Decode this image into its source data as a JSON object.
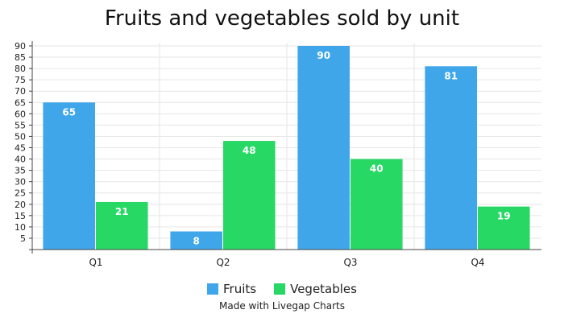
{
  "colors": {
    "fruits": "#3fa6ea",
    "vegetables": "#27d865",
    "grid": "#e6e6e6",
    "axis": "#444444"
  },
  "footer": {
    "credit": "Made with Livegap Charts"
  },
  "chart_data": {
    "type": "bar",
    "title": "Fruits and vegetables sold by unit",
    "categories": [
      "Q1",
      "Q2",
      "Q3",
      "Q4"
    ],
    "series": [
      {
        "name": "Fruits",
        "values": [
          65,
          8,
          90,
          81
        ]
      },
      {
        "name": "Vegetables",
        "values": [
          21,
          48,
          40,
          19
        ]
      }
    ],
    "ylim": [
      0,
      90
    ],
    "yticks": [
      5,
      10,
      15,
      20,
      25,
      30,
      35,
      40,
      45,
      50,
      55,
      60,
      65,
      70,
      75,
      80,
      85,
      90
    ],
    "grid": true,
    "data_labels": true,
    "legend": "bottom"
  }
}
